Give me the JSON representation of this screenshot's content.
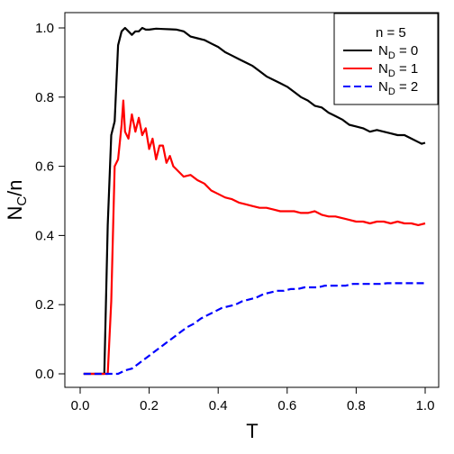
{
  "chart_data": {
    "type": "line",
    "xlabel": "T",
    "ylabel": {
      "main": "N",
      "sub": "C",
      "rest": "/n"
    },
    "xlim": [
      0,
      1.0
    ],
    "ylim": [
      0,
      1.0
    ],
    "xticks": [
      "0.0",
      "0.2",
      "0.4",
      "0.6",
      "0.8",
      "1.0"
    ],
    "yticks": [
      "0.0",
      "0.2",
      "0.4",
      "0.6",
      "0.8",
      "1.0"
    ],
    "grid": false,
    "legend": {
      "placement": "top-right",
      "title": "n = 5",
      "entries": [
        {
          "main": "N",
          "sub": "D",
          "rest": " = 0"
        },
        {
          "main": "N",
          "sub": "D",
          "rest": " = 1"
        },
        {
          "main": "N",
          "sub": "D",
          "rest": " = 2"
        }
      ]
    },
    "series": [
      {
        "color": "#000000",
        "dash": "solid",
        "x": [
          0.01,
          0.03,
          0.05,
          0.07,
          0.08,
          0.09,
          0.1,
          0.11,
          0.12,
          0.13,
          0.14,
          0.15,
          0.16,
          0.17,
          0.18,
          0.19,
          0.2,
          0.22,
          0.24,
          0.26,
          0.28,
          0.3,
          0.32,
          0.34,
          0.36,
          0.38,
          0.4,
          0.42,
          0.44,
          0.46,
          0.48,
          0.5,
          0.52,
          0.54,
          0.56,
          0.58,
          0.6,
          0.62,
          0.64,
          0.66,
          0.68,
          0.7,
          0.72,
          0.74,
          0.76,
          0.78,
          0.8,
          0.82,
          0.84,
          0.86,
          0.88,
          0.9,
          0.92,
          0.94,
          0.96,
          0.98,
          0.99,
          1.0
        ],
        "y": [
          0.0,
          0.0,
          0.0,
          0.0,
          0.43,
          0.69,
          0.73,
          0.95,
          0.99,
          1.0,
          0.99,
          0.98,
          0.99,
          0.99,
          1.0,
          0.995,
          0.995,
          0.998,
          0.997,
          0.996,
          0.995,
          0.99,
          0.975,
          0.97,
          0.965,
          0.955,
          0.945,
          0.93,
          0.92,
          0.91,
          0.9,
          0.89,
          0.875,
          0.86,
          0.85,
          0.84,
          0.83,
          0.815,
          0.8,
          0.79,
          0.775,
          0.77,
          0.755,
          0.745,
          0.735,
          0.72,
          0.715,
          0.71,
          0.7,
          0.705,
          0.7,
          0.695,
          0.69,
          0.69,
          0.68,
          0.67,
          0.665,
          0.668
        ]
      },
      {
        "color": "#ff0000",
        "dash": "solid",
        "x": [
          0.01,
          0.03,
          0.05,
          0.07,
          0.08,
          0.09,
          0.1,
          0.11,
          0.12,
          0.125,
          0.13,
          0.14,
          0.15,
          0.16,
          0.17,
          0.18,
          0.19,
          0.2,
          0.21,
          0.22,
          0.23,
          0.24,
          0.25,
          0.26,
          0.27,
          0.28,
          0.3,
          0.32,
          0.34,
          0.36,
          0.38,
          0.4,
          0.42,
          0.44,
          0.46,
          0.48,
          0.5,
          0.52,
          0.54,
          0.56,
          0.58,
          0.6,
          0.62,
          0.64,
          0.66,
          0.68,
          0.7,
          0.72,
          0.74,
          0.76,
          0.78,
          0.8,
          0.82,
          0.84,
          0.86,
          0.88,
          0.9,
          0.92,
          0.94,
          0.96,
          0.98,
          1.0
        ],
        "y": [
          0.0,
          0.0,
          0.0,
          0.0,
          0.0,
          0.21,
          0.6,
          0.62,
          0.72,
          0.79,
          0.7,
          0.68,
          0.75,
          0.7,
          0.74,
          0.69,
          0.71,
          0.65,
          0.68,
          0.62,
          0.66,
          0.66,
          0.61,
          0.63,
          0.6,
          0.59,
          0.57,
          0.575,
          0.56,
          0.55,
          0.53,
          0.52,
          0.51,
          0.505,
          0.495,
          0.49,
          0.485,
          0.48,
          0.48,
          0.475,
          0.47,
          0.47,
          0.47,
          0.465,
          0.465,
          0.47,
          0.46,
          0.455,
          0.455,
          0.45,
          0.445,
          0.44,
          0.44,
          0.435,
          0.44,
          0.44,
          0.435,
          0.44,
          0.435,
          0.435,
          0.43,
          0.435
        ]
      },
      {
        "color": "#0000ff",
        "dash": "dashed",
        "x": [
          0.01,
          0.03,
          0.05,
          0.07,
          0.09,
          0.11,
          0.13,
          0.15,
          0.17,
          0.19,
          0.21,
          0.23,
          0.25,
          0.27,
          0.29,
          0.31,
          0.33,
          0.35,
          0.37,
          0.39,
          0.41,
          0.43,
          0.45,
          0.47,
          0.49,
          0.51,
          0.53,
          0.55,
          0.57,
          0.59,
          0.61,
          0.63,
          0.65,
          0.67,
          0.69,
          0.71,
          0.73,
          0.75,
          0.77,
          0.79,
          0.81,
          0.83,
          0.85,
          0.87,
          0.89,
          0.91,
          0.93,
          0.95,
          0.97,
          0.99,
          1.0
        ],
        "y": [
          0.0,
          0.0,
          0.0,
          0.0,
          0.0,
          0.0,
          0.01,
          0.015,
          0.03,
          0.045,
          0.06,
          0.075,
          0.09,
          0.105,
          0.12,
          0.135,
          0.145,
          0.16,
          0.17,
          0.18,
          0.19,
          0.195,
          0.2,
          0.21,
          0.215,
          0.22,
          0.23,
          0.235,
          0.24,
          0.24,
          0.245,
          0.245,
          0.25,
          0.25,
          0.25,
          0.255,
          0.255,
          0.255,
          0.255,
          0.26,
          0.26,
          0.26,
          0.26,
          0.26,
          0.262,
          0.262,
          0.262,
          0.262,
          0.262,
          0.262,
          0.262
        ]
      }
    ]
  }
}
